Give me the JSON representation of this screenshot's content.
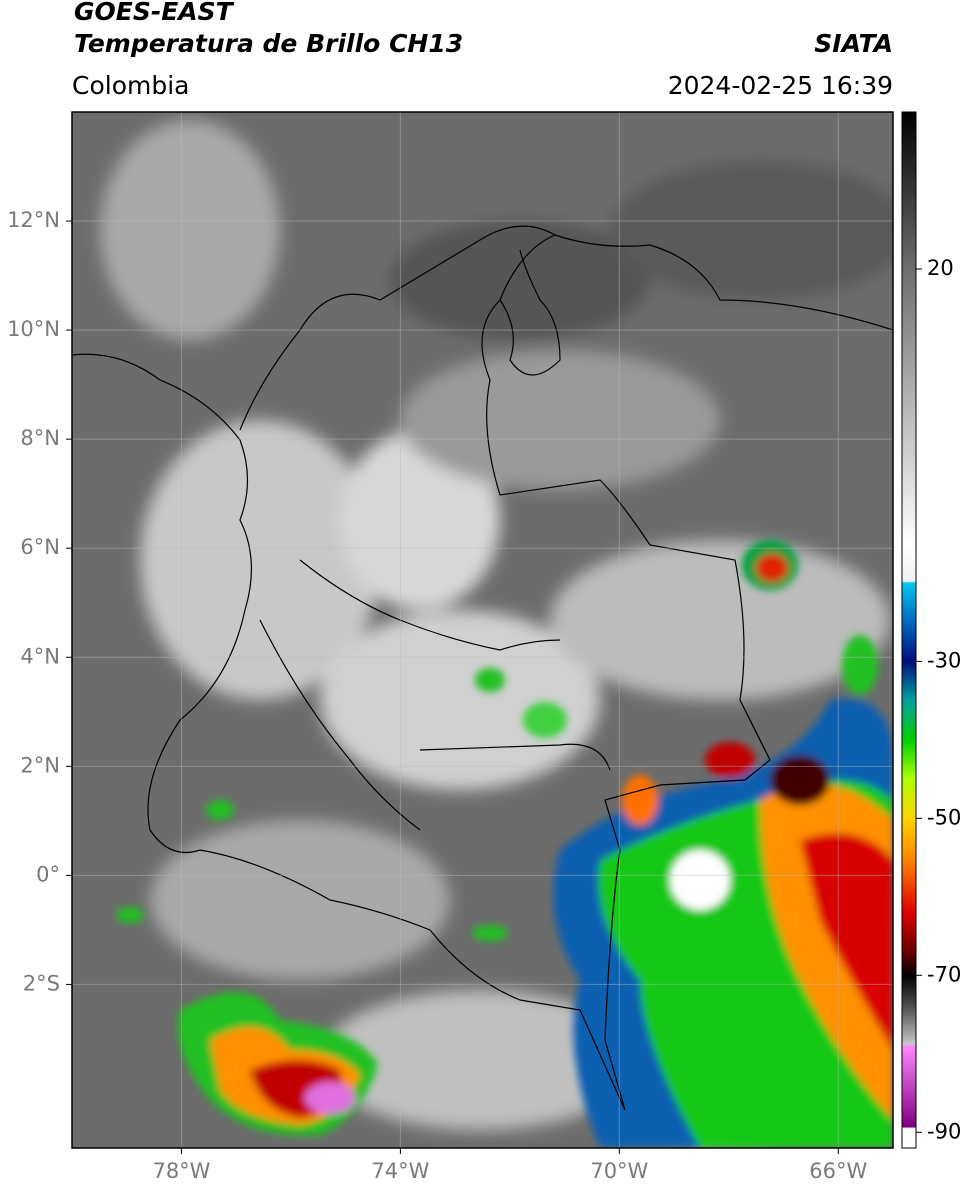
{
  "chart_data": {
    "type": "raster-map",
    "title": "GOES-EAST",
    "subtitle": "Temperatura de Brillo CH13",
    "source": "SIATA",
    "region": "Colombia",
    "timestamp": "2024-02-25 16:39",
    "xlim": [
      -80,
      -65
    ],
    "ylim": [
      -5,
      14
    ],
    "xticks": [
      {
        "value": -78,
        "label": "78°W"
      },
      {
        "value": -74,
        "label": "74°W"
      },
      {
        "value": -70,
        "label": "70°W"
      },
      {
        "value": -66,
        "label": "66°W"
      }
    ],
    "yticks": [
      {
        "value": 12,
        "label": "12°N"
      },
      {
        "value": 10,
        "label": "10°N"
      },
      {
        "value": 8,
        "label": "8°N"
      },
      {
        "value": 6,
        "label": "6°N"
      },
      {
        "value": 4,
        "label": "4°N"
      },
      {
        "value": 2,
        "label": "2°N"
      },
      {
        "value": 0,
        "label": "0°"
      },
      {
        "value": -2,
        "label": "2°S"
      }
    ],
    "grid": true,
    "colorbar": {
      "lim": [
        -92,
        40
      ],
      "ticks": [
        20,
        -30,
        -50,
        -70,
        -90
      ],
      "stops": [
        {
          "value": 40,
          "color": "#000000"
        },
        {
          "value": 20,
          "color": "#6e6e6e"
        },
        {
          "value": -15,
          "color": "#ffffff"
        },
        {
          "value": -19.8,
          "color": "#f2f2f2"
        },
        {
          "value": -20,
          "color": "#00c8f0"
        },
        {
          "value": -25,
          "color": "#0068c0"
        },
        {
          "value": -30,
          "color": "#00107a"
        },
        {
          "value": -35,
          "color": "#00a0a0"
        },
        {
          "value": -40,
          "color": "#00d000"
        },
        {
          "value": -45,
          "color": "#b0ff00"
        },
        {
          "value": -50,
          "color": "#ffd400"
        },
        {
          "value": -55,
          "color": "#ff8a00"
        },
        {
          "value": -62,
          "color": "#e00000"
        },
        {
          "value": -67,
          "color": "#6a0000"
        },
        {
          "value": -70,
          "color": "#000000"
        },
        {
          "value": -74,
          "color": "#505050"
        },
        {
          "value": -78.8,
          "color": "#c8c8c8"
        },
        {
          "value": -79,
          "color": "#ff88ff"
        },
        {
          "value": -89.3,
          "color": "#800080"
        },
        {
          "value": -89.5,
          "color": "#ffffff"
        },
        {
          "value": -92,
          "color": "#ffffff"
        }
      ]
    }
  }
}
